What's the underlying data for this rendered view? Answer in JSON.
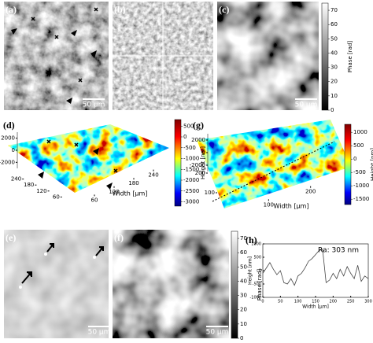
{
  "panels": {
    "a": {
      "label": "(a)",
      "scale_bar": "50 µm"
    },
    "b": {
      "label": "(b)"
    },
    "c": {
      "label": "(c)",
      "scale_bar": "50 µm",
      "colorbar": {
        "label": "Phase [rad]",
        "lim": [
          0,
          75
        ],
        "ticks": [
          0,
          10,
          20,
          30,
          40,
          50,
          60,
          70
        ]
      }
    },
    "d": {
      "label": "(d)",
      "colorbar": {
        "label": "Height [nm]",
        "lim": [
          -3200,
          800
        ],
        "ticks": [
          500,
          0,
          -500,
          -1000,
          -1500,
          -2000,
          -2500,
          -3000
        ]
      },
      "zlim": [
        -3000,
        3000
      ],
      "zticks": [
        2000,
        0,
        -2000
      ],
      "x_label": "Width [µm]",
      "xlim": [
        0,
        300
      ],
      "xticks": [
        60,
        120,
        180,
        240
      ],
      "ylim": [
        0,
        300
      ],
      "yticks": [
        240,
        180,
        120,
        60
      ]
    },
    "g": {
      "label": "(g)",
      "colorbar": {
        "label": "Height [nm]",
        "lim": [
          -1700,
          1300
        ],
        "ticks": [
          1000,
          500,
          0,
          -500,
          -1000,
          -1500
        ]
      },
      "zlim": [
        -3000,
        3000
      ],
      "zticks": [
        2000,
        0,
        -2000
      ],
      "x_label": "Width [µm]",
      "xlim": [
        0,
        300
      ],
      "xticks": [
        100,
        200
      ],
      "ylim": [
        0,
        300
      ],
      "yticks": [
        200,
        100
      ]
    },
    "e": {
      "label": "(e)",
      "scale_bar": "50 µm"
    },
    "f": {
      "label": "(f)",
      "scale_bar": "50 µm",
      "colorbar": {
        "label": "Phase [rad]",
        "lim": [
          0,
          75
        ],
        "ticks": [
          0,
          10,
          20,
          30,
          40,
          50,
          60,
          70
        ]
      }
    },
    "h": {
      "label": "(h)",
      "annotation": "Ra: 303 nm",
      "x_label": "Width [µm]",
      "y_label": "Height [nm]",
      "xlim": [
        0,
        300
      ],
      "xticks": [
        0,
        50,
        100,
        150,
        200,
        250,
        300
      ],
      "ylim": [
        -1000,
        1000
      ],
      "yticks": [
        1000,
        500,
        0,
        -500,
        -1000
      ],
      "x": [
        0,
        10,
        20,
        30,
        40,
        50,
        60,
        70,
        80,
        90,
        100,
        110,
        120,
        130,
        140,
        150,
        160,
        170,
        180,
        190,
        200,
        210,
        220,
        230,
        240,
        250,
        260,
        270,
        280,
        290,
        300
      ],
      "values": [
        -100,
        100,
        300,
        50,
        -150,
        0,
        -450,
        -500,
        -300,
        -550,
        -200,
        -100,
        100,
        350,
        450,
        600,
        750,
        800,
        -450,
        -350,
        -100,
        -300,
        50,
        -200,
        150,
        -100,
        -300,
        200,
        -400,
        -200,
        -300
      ]
    }
  }
}
